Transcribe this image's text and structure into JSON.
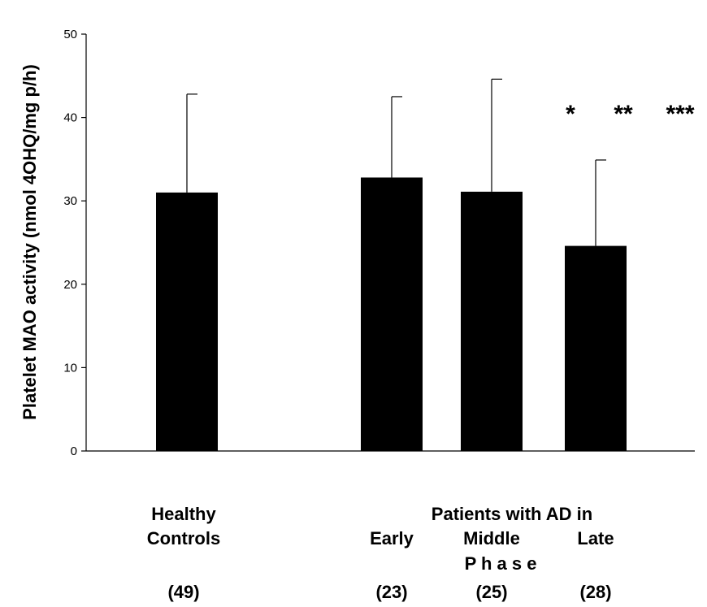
{
  "chart_data": {
    "type": "bar",
    "ylabel": "Platelet MAO activity  (nmol 4OHQ/mg p/h)",
    "ylim": [
      0,
      50
    ],
    "yticks": [
      0,
      10,
      20,
      30,
      40,
      50
    ],
    "grid": false,
    "bars": [
      {
        "group": "Healthy Controls",
        "n": "(49)",
        "value": 31.0,
        "error": 11.8
      },
      {
        "group": "Early",
        "n": "(23)",
        "value": 32.8,
        "error": 9.7
      },
      {
        "group": "Middle",
        "n": "(25)",
        "value": 31.1,
        "error": 13.5
      },
      {
        "group": "Late",
        "n": "(28)",
        "value": 24.6,
        "error": 10.3
      }
    ],
    "significance": [
      "*",
      "**",
      "***"
    ],
    "group_labels": {
      "healthy_line1": "Healthy",
      "healthy_line2": "Controls",
      "patients_header": "Patients with AD in",
      "phase": "P h a s e"
    },
    "colors": {
      "bar": "#000000",
      "axis": "#000000"
    }
  }
}
